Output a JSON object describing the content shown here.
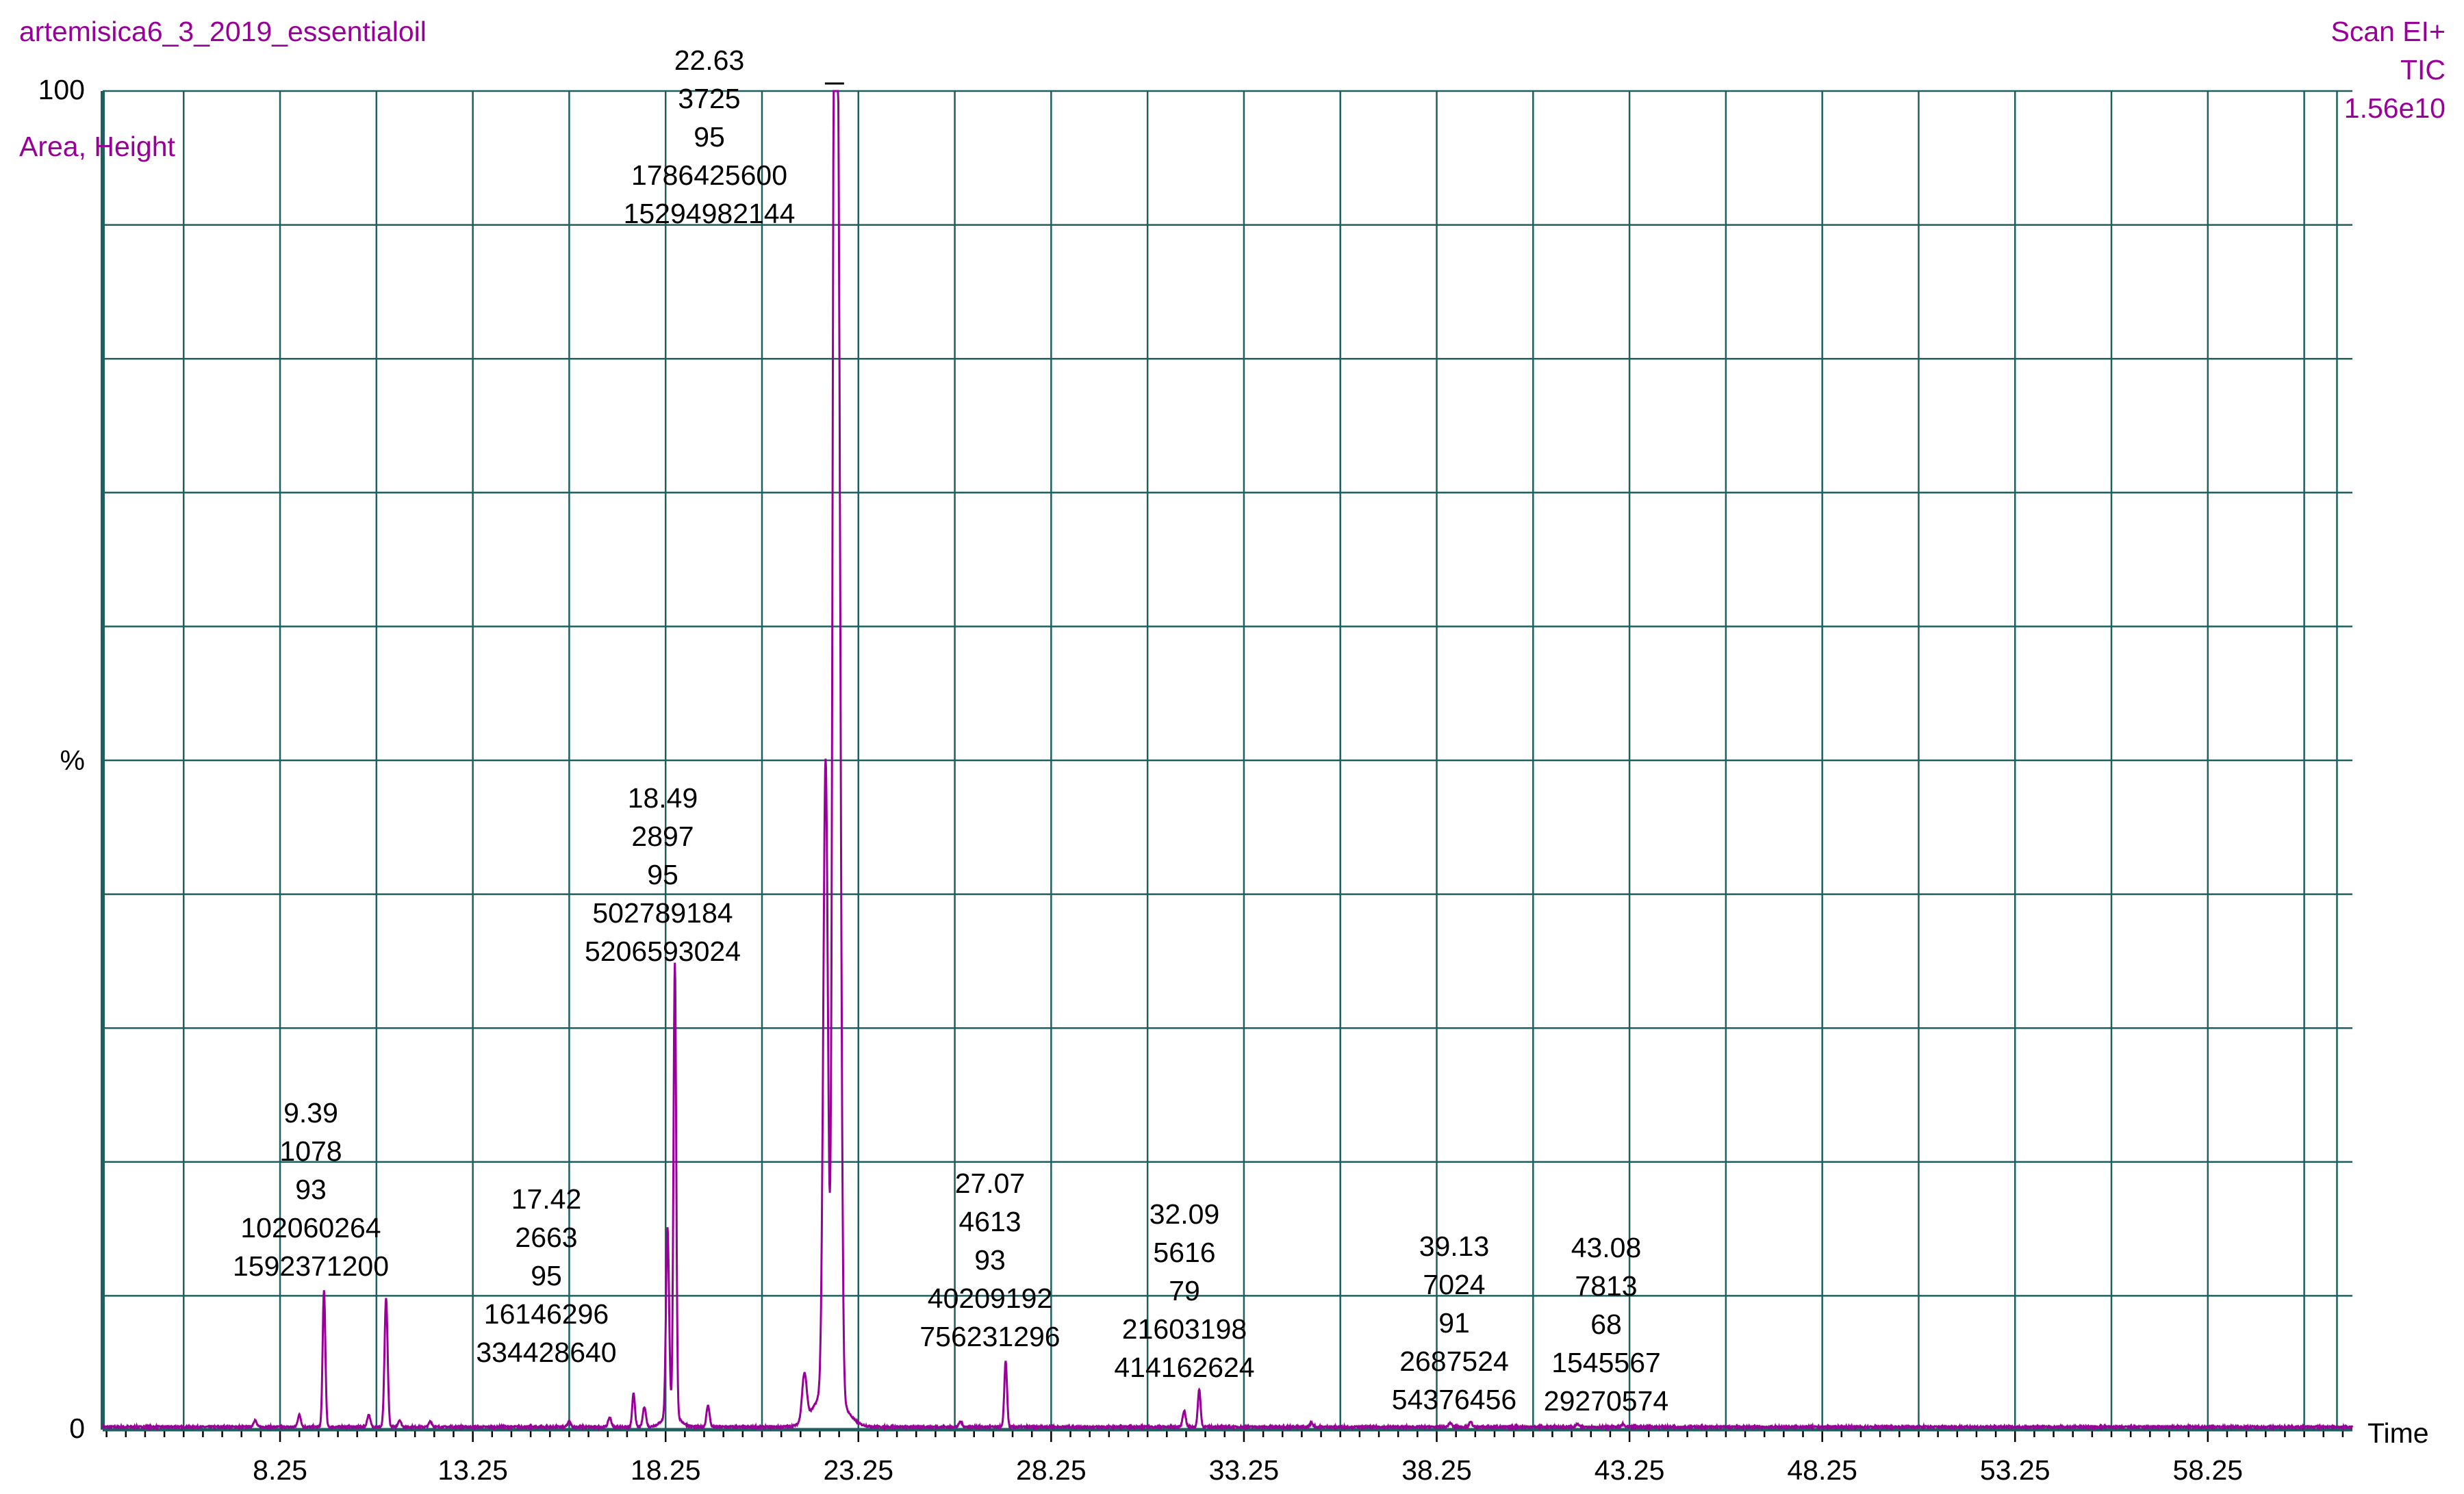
{
  "header": {
    "sample_name": "artemisica6_3_2019_essentialoil",
    "scan_mode": "Scan EI+",
    "trace": "TIC",
    "intensity_max": "1.56e10",
    "label_mode": "Area, Height"
  },
  "colors": {
    "grid": "#1f5f5f",
    "trace": "#990099",
    "text_meta": "#990099",
    "text_axis": "#000000"
  },
  "chart_data": {
    "type": "line",
    "title": "",
    "xlabel": "Time",
    "ylabel": "%",
    "xlim": [
      3.65,
      62.0
    ],
    "ylim": [
      0,
      100
    ],
    "grid": true,
    "x_tick_labels": [
      "8.25",
      "13.25",
      "18.25",
      "23.25",
      "28.25",
      "33.25",
      "38.25",
      "43.25",
      "48.25",
      "53.25",
      "58.25"
    ],
    "y_tick_labels": [
      "100",
      "%",
      "0"
    ],
    "peaks": [
      {
        "rt": 9.39,
        "height_pct": 10.2,
        "annotation": [
          "9.39",
          "1078",
          "93",
          "102060264",
          "1592371200"
        ]
      },
      {
        "rt": 17.42,
        "height_pct": 2.5,
        "annotation": [
          "17.42",
          "2663",
          "95",
          "16146296",
          "334428640"
        ]
      },
      {
        "rt": 18.49,
        "height_pct": 33.8,
        "annotation": [
          "18.49",
          "2897",
          "95",
          "502789184",
          "5206593024"
        ]
      },
      {
        "rt": 22.63,
        "height_pct": 100,
        "annotation": [
          "22.63",
          "3725",
          "95",
          "1786425600",
          "15294982144"
        ]
      },
      {
        "rt": 27.07,
        "height_pct": 4.9,
        "annotation": [
          "27.07",
          "4613",
          "93",
          "40209192",
          "756231296"
        ]
      },
      {
        "rt": 32.09,
        "height_pct": 2.8,
        "annotation": [
          "32.09",
          "5616",
          "79",
          "21603198",
          "414162624"
        ]
      },
      {
        "rt": 39.13,
        "height_pct": 0.4,
        "annotation": [
          "39.13",
          "7024",
          "91",
          "2687524",
          "54376456"
        ]
      },
      {
        "rt": 43.08,
        "height_pct": 0.2,
        "annotation": [
          "43.08",
          "7813",
          "68",
          "1545567",
          "29270574"
        ]
      }
    ],
    "minor_peaks": [
      {
        "rt": 7.6,
        "height_pct": 0.5
      },
      {
        "rt": 8.75,
        "height_pct": 0.9
      },
      {
        "rt": 10.55,
        "height_pct": 0.9
      },
      {
        "rt": 11.0,
        "height_pct": 9.6
      },
      {
        "rt": 11.35,
        "height_pct": 0.5
      },
      {
        "rt": 12.15,
        "height_pct": 0.4
      },
      {
        "rt": 15.75,
        "height_pct": 0.4
      },
      {
        "rt": 16.8,
        "height_pct": 0.7
      },
      {
        "rt": 17.7,
        "height_pct": 1.5
      },
      {
        "rt": 18.3,
        "height_pct": 14.0
      },
      {
        "rt": 19.35,
        "height_pct": 1.6
      },
      {
        "rt": 21.85,
        "height_pct": 3.5
      },
      {
        "rt": 22.4,
        "height_pct": 47.0
      },
      {
        "rt": 22.73,
        "height_pct": 83.0
      },
      {
        "rt": 25.9,
        "height_pct": 0.4
      },
      {
        "rt": 31.7,
        "height_pct": 1.2
      },
      {
        "rt": 35.0,
        "height_pct": 0.3
      },
      {
        "rt": 38.6,
        "height_pct": 0.3
      },
      {
        "rt": 41.9,
        "height_pct": 0.2
      }
    ]
  }
}
